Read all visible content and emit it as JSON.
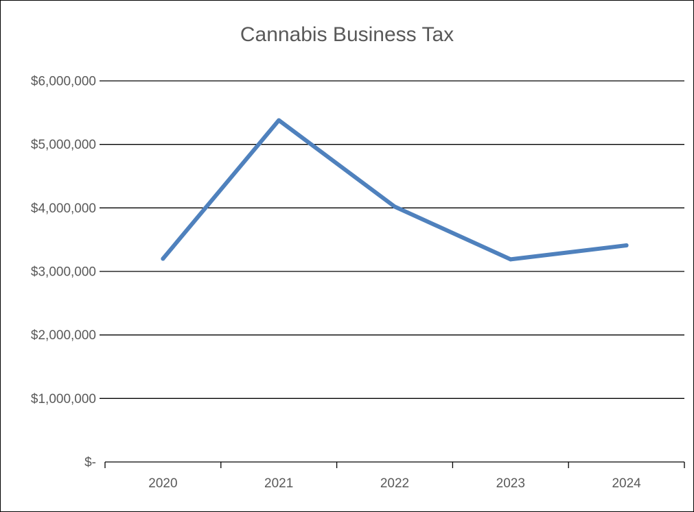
{
  "chart_data": {
    "type": "line",
    "title": "Cannabis Business Tax",
    "xlabel": "",
    "ylabel": "",
    "categories": [
      "2020",
      "2021",
      "2022",
      "2023",
      "2024"
    ],
    "series": [
      {
        "values": [
          3200000,
          5380000,
          4020000,
          3190000,
          3410000
        ],
        "color": "#4F81BD"
      }
    ],
    "ylim": [
      0,
      6000000
    ],
    "y_ticks": [
      {
        "value": 0,
        "label": "$-"
      },
      {
        "value": 1000000,
        "label": "$1,000,000"
      },
      {
        "value": 2000000,
        "label": "$2,000,000"
      },
      {
        "value": 3000000,
        "label": "$3,000,000"
      },
      {
        "value": 4000000,
        "label": "$4,000,000"
      },
      {
        "value": 5000000,
        "label": "$5,000,000"
      },
      {
        "value": 6000000,
        "label": "$6,000,000"
      }
    ],
    "grid": true,
    "legend": "none"
  }
}
